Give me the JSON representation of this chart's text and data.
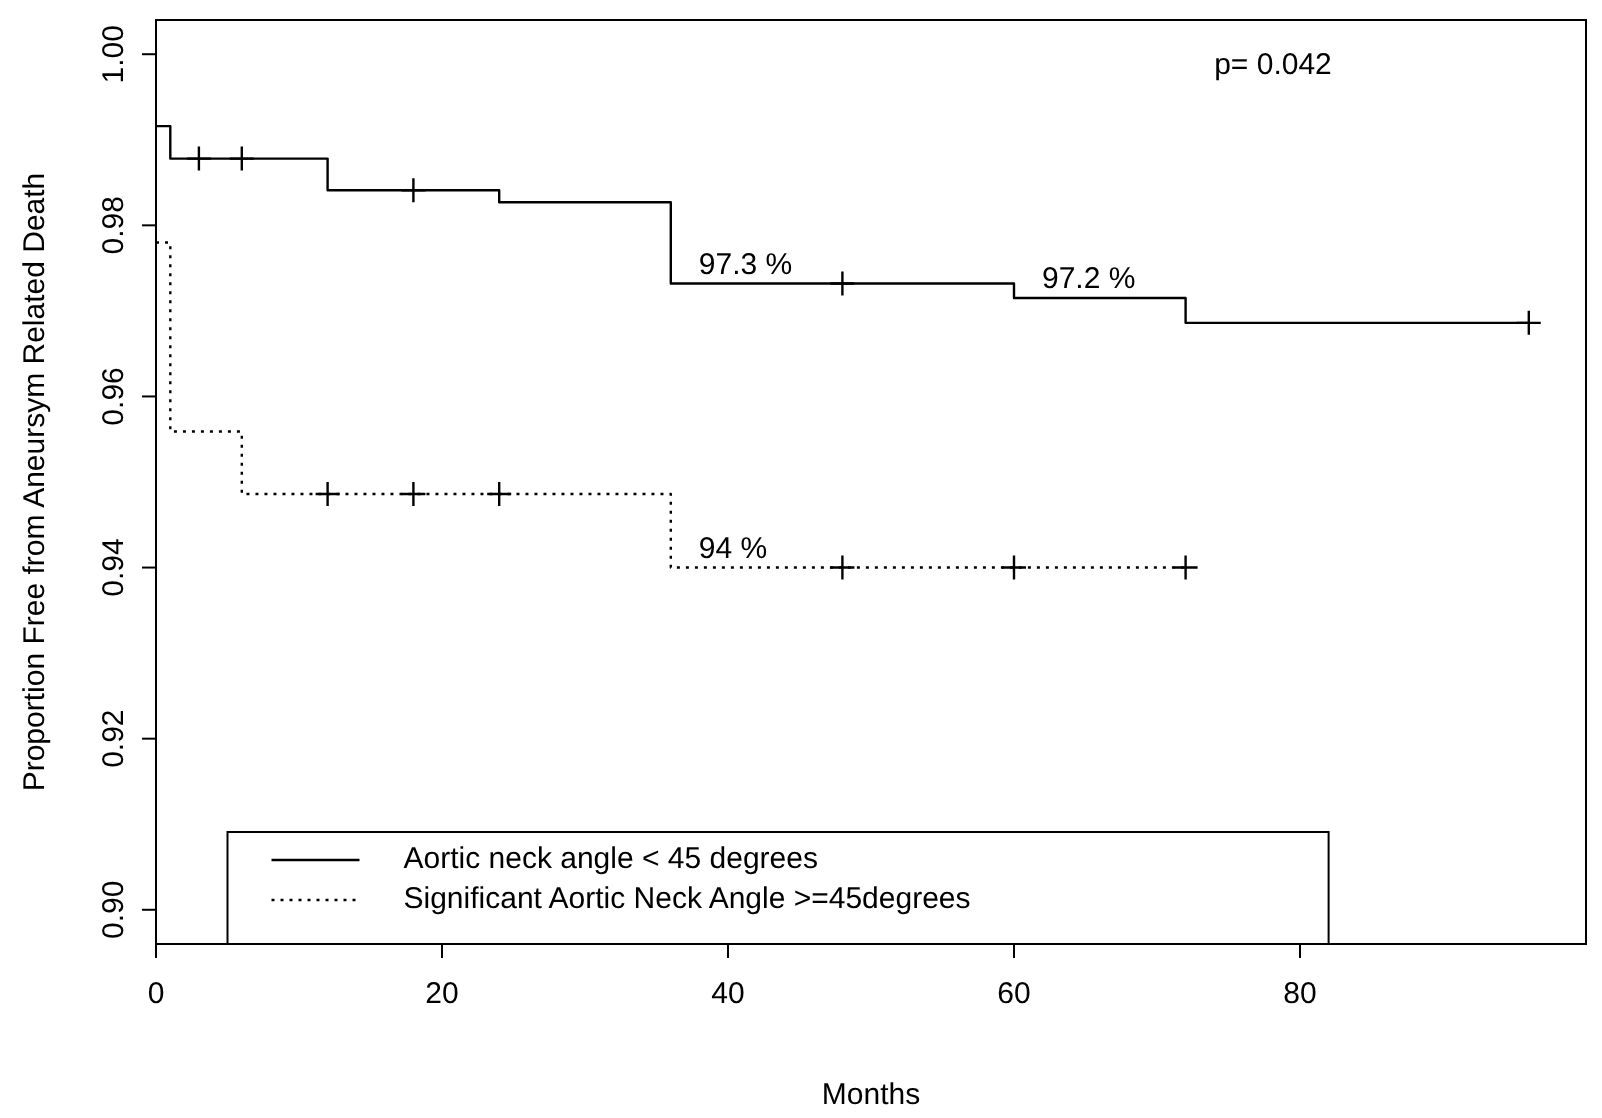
{
  "chart_data": {
    "type": "step",
    "xlabel": "Months",
    "ylabel": "Proportion Free from Aneursym Related Death",
    "xlim": [
      0,
      100
    ],
    "ylim": [
      0.896,
      1.004
    ],
    "xticks": [
      0,
      20,
      40,
      60,
      80
    ],
    "yticks": [
      {
        "value": 0.9,
        "label": "0.90"
      },
      {
        "value": 0.92,
        "label": "0.92"
      },
      {
        "value": 0.94,
        "label": "0.94"
      },
      {
        "value": 0.96,
        "label": "0.96"
      },
      {
        "value": 0.98,
        "label": "0.98"
      },
      {
        "value": 1.0,
        "label": "1.00"
      }
    ],
    "grid": false,
    "legend": "bottom",
    "series": [
      {
        "name": "Aortic neck angle < 45 degrees",
        "color": "#000000",
        "line_style": "solid",
        "x": [
          0,
          1,
          12,
          24,
          36,
          60,
          72,
          96
        ],
        "values": [
          0.9916,
          0.9878,
          0.9841,
          0.9827,
          0.9732,
          0.9715,
          0.9686,
          0.9686
        ],
        "value_labels": [
          null,
          null,
          null,
          null,
          "97.3 %",
          "97.2 %",
          null,
          null
        ]
      },
      {
        "name": "Significant Aortic Neck Angle >=45degrees",
        "color": "#000000",
        "line_style": "dotted",
        "x": [
          0,
          1,
          6,
          36,
          72
        ],
        "values": [
          0.978,
          0.9559,
          0.9486,
          0.94,
          0.94
        ],
        "value_labels": [
          null,
          null,
          null,
          "94 %",
          null
        ]
      },
      {
        "type": "scatter",
        "marker": "cross",
        "color": "#000000",
        "x": [
          3,
          6,
          18,
          48,
          96
        ],
        "values": [
          0.9878,
          0.9878,
          0.9841,
          0.9732,
          0.9686
        ]
      },
      {
        "type": "scatter",
        "marker": "cross",
        "color": "#000000",
        "x": [
          12,
          18,
          24,
          48,
          60,
          72
        ],
        "values": [
          0.9486,
          0.9486,
          0.9486,
          0.94,
          0.94,
          0.94
        ]
      }
    ],
    "annotations": [
      "p=  0.042"
    ]
  }
}
